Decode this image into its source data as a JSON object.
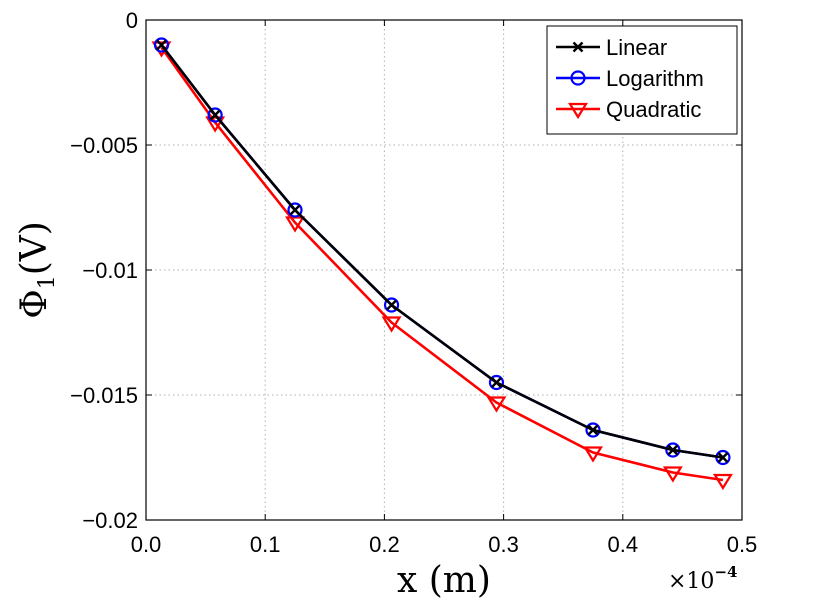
{
  "chart_data": {
    "type": "line",
    "title": "",
    "xlabel": "x (m)",
    "ylabel_main": "Φ",
    "ylabel_sub": "1",
    "ylabel_unit": "(V)",
    "x_multiplier": {
      "base": "×10",
      "exponent": "−4"
    },
    "xlim": [
      0,
      0.5
    ],
    "ylim": [
      -0.02,
      0
    ],
    "x_ticks": [
      0,
      0.1,
      0.2,
      0.3,
      0.4,
      0.5
    ],
    "x_tick_labels": [
      "0.0",
      "0.1",
      "0.2",
      "0.3",
      "0.4",
      "0.5"
    ],
    "y_ticks": [
      0,
      -0.005,
      -0.01,
      -0.015,
      -0.02
    ],
    "y_tick_labels": [
      "0",
      "−0.005",
      "−0.01",
      "−0.015",
      "−0.02"
    ],
    "grid": true,
    "legend_position": "top-right",
    "x": [
      0.013,
      0.058,
      0.125,
      0.206,
      0.294,
      0.375,
      0.442,
      0.484
    ],
    "series": [
      {
        "name": "Linear",
        "color": "#000000",
        "marker": "x",
        "values": [
          -0.001,
          -0.0038,
          -0.0076,
          -0.0114,
          -0.0145,
          -0.0164,
          -0.0172,
          -0.0175
        ]
      },
      {
        "name": "Logarithm",
        "color": "#0000ff",
        "marker": "circle",
        "values": [
          -0.001,
          -0.0038,
          -0.0076,
          -0.0114,
          -0.0145,
          -0.0164,
          -0.0172,
          -0.0175
        ]
      },
      {
        "name": "Quadratic",
        "color": "#ff0000",
        "marker": "triangle-down",
        "values": [
          -0.0011,
          -0.0041,
          -0.0081,
          -0.0121,
          -0.0153,
          -0.0173,
          -0.0181,
          -0.0184
        ]
      }
    ]
  }
}
